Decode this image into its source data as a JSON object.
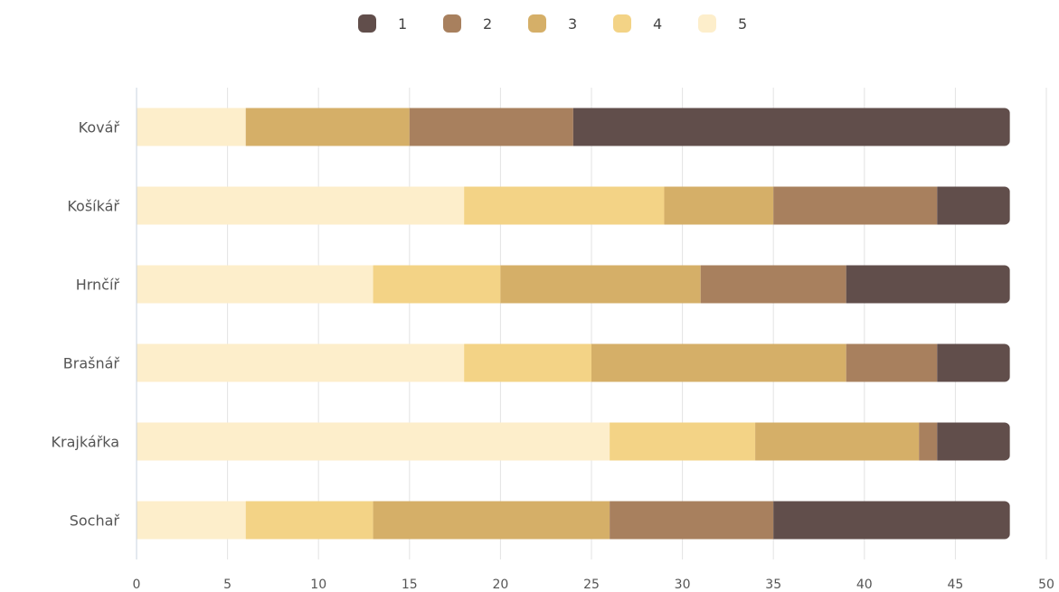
{
  "chart_data": {
    "type": "bar",
    "orientation": "horizontal",
    "stacked": true,
    "title": "",
    "xlabel": "",
    "ylabel": "",
    "categories": [
      "Kovář",
      "Košíkář",
      "Hrnčíř",
      "Brašnář",
      "Krajkářka",
      "Sochař"
    ],
    "xlim": [
      0,
      50
    ],
    "xticks": [
      0,
      5,
      10,
      15,
      20,
      25,
      30,
      35,
      40,
      45,
      50
    ],
    "grid": true,
    "legend_position": "top-center",
    "series": [
      {
        "name": "5",
        "color": "#fdeecb",
        "values": [
          6,
          18,
          13,
          18,
          26,
          6
        ]
      },
      {
        "name": "4",
        "color": "#f3d386",
        "values": [
          0,
          11,
          7,
          7,
          8,
          7
        ]
      },
      {
        "name": "3",
        "color": "#d5af68",
        "values": [
          9,
          6,
          11,
          14,
          9,
          13
        ]
      },
      {
        "name": "2",
        "color": "#a8805e",
        "values": [
          9,
          9,
          8,
          5,
          1,
          9
        ]
      },
      {
        "name": "1",
        "color": "#614e4b",
        "values": [
          24,
          4,
          9,
          4,
          4,
          13
        ]
      }
    ],
    "legend_order": [
      "1",
      "2",
      "3",
      "4",
      "5"
    ]
  }
}
